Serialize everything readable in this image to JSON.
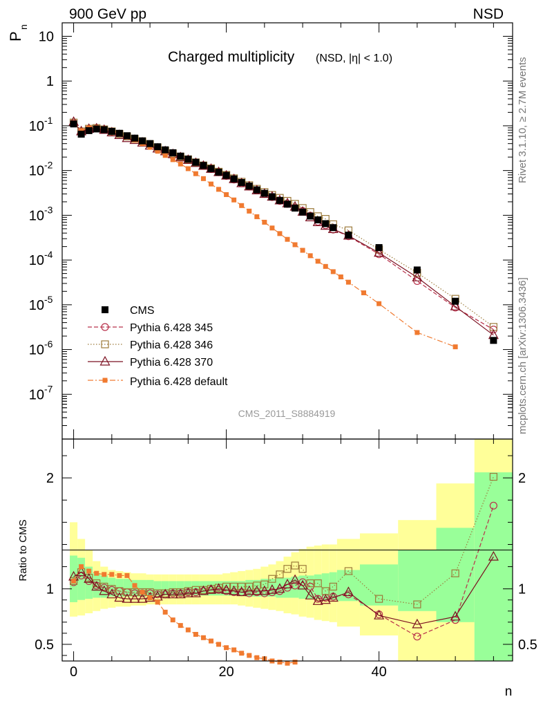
{
  "header": {
    "left": "900 GeV pp",
    "right": "NSD"
  },
  "side_labels": {
    "rivet": "Rivet 3.1.10, ≥ 2.7M events",
    "mcplots": "mcplots.cern.ch [arXiv:1306.3436]"
  },
  "axes": {
    "y_main": "P",
    "y_main_sub": "n",
    "y_ratio": "Ratio to CMS",
    "x": "n"
  },
  "title": {
    "main": "Charged multiplicity",
    "sub": "(NSD, |η| < 1.0)"
  },
  "analysis_tag": "CMS_2011_S8884919",
  "colors": {
    "cms": "#000000",
    "s345": "#b8304a",
    "s346": "#9c7a3a",
    "s370": "#7b1020",
    "default": "#f07a30",
    "band_inner": "#99ff99",
    "band_outer": "#ffff99"
  },
  "chart_data": [
    {
      "type": "scatter",
      "panel": "main",
      "ylog": true,
      "ylim": [
        1e-08,
        20
      ],
      "xlim": [
        -1.5,
        57.5
      ],
      "y_ticks": [
        "10",
        "1",
        "10^-1",
        "10^-2",
        "10^-3",
        "10^-4",
        "10^-5",
        "10^-6",
        "10^-7"
      ],
      "x": [
        0,
        1,
        2,
        3,
        4,
        5,
        6,
        7,
        8,
        9,
        10,
        11,
        12,
        13,
        14,
        15,
        16,
        17,
        18,
        19,
        20,
        21,
        22,
        23,
        24,
        25,
        26,
        27,
        28,
        29,
        30,
        31,
        32,
        33,
        34,
        36,
        40,
        45,
        50,
        55
      ],
      "series": [
        {
          "name": "CMS",
          "marker": "square-filled",
          "values": [
            0.11,
            0.065,
            0.078,
            0.085,
            0.082,
            0.075,
            0.068,
            0.06,
            0.053,
            0.046,
            0.04,
            0.034,
            0.029,
            0.025,
            0.021,
            0.018,
            0.0153,
            0.013,
            0.011,
            0.0092,
            0.0078,
            0.0065,
            0.0054,
            0.0045,
            0.0037,
            0.0031,
            0.0026,
            0.00215,
            0.00177,
            0.00145,
            0.00118,
            0.00096,
            0.00079,
            0.00065,
            0.00053,
            0.00036,
            0.00019,
            6e-05,
            1.2e-05,
            1.6e-06
          ]
        },
        {
          "name": "Pythia 6.428 345",
          "marker": "circle-open",
          "values": [
            0.116,
            0.074,
            0.085,
            0.088,
            0.083,
            0.074,
            0.066,
            0.058,
            0.051,
            0.044,
            0.038,
            0.032,
            0.0275,
            0.0238,
            0.0202,
            0.0175,
            0.015,
            0.0128,
            0.0108,
            0.0092,
            0.0076,
            0.0063,
            0.0052,
            0.0044,
            0.0036,
            0.003,
            0.00255,
            0.0021,
            0.0018,
            0.00149,
            0.00125,
            0.00098,
            0.00072,
            0.0006,
            0.00048,
            0.00034,
            0.000135,
            3.4e-05,
            8.7e-06,
            2.8e-06
          ]
        },
        {
          "name": "Pythia 6.428 346",
          "marker": "square-open",
          "values": [
            0.118,
            0.075,
            0.086,
            0.089,
            0.083,
            0.075,
            0.066,
            0.058,
            0.051,
            0.045,
            0.039,
            0.033,
            0.028,
            0.0242,
            0.0205,
            0.0178,
            0.0152,
            0.013,
            0.0112,
            0.0094,
            0.008,
            0.0067,
            0.0056,
            0.0047,
            0.0039,
            0.0033,
            0.00285,
            0.00245,
            0.0021,
            0.0018,
            0.00145,
            0.00118,
            0.00095,
            0.00083,
            0.00063,
            0.00046,
            0.000172,
            5.2e-05,
            1.36e-05,
            3.2e-06
          ]
        },
        {
          "name": "Pythia 6.428 370",
          "marker": "triangle-open",
          "values": [
            0.122,
            0.075,
            0.085,
            0.087,
            0.081,
            0.071,
            0.062,
            0.053,
            0.048,
            0.042,
            0.036,
            0.031,
            0.0268,
            0.0232,
            0.0197,
            0.0172,
            0.0147,
            0.0127,
            0.0109,
            0.0092,
            0.0077,
            0.0064,
            0.0052,
            0.0044,
            0.0036,
            0.003,
            0.0026,
            0.00215,
            0.00185,
            0.00155,
            0.0012,
            0.0009,
            0.0007,
            0.00058,
            0.00049,
            0.00035,
            0.000145,
            4.1e-05,
            9.2e-06,
            2.1e-06
          ]
        },
        {
          "name": "Pythia 6.428 default",
          "marker": "square-filled-small",
          "x": [
            0,
            1,
            2,
            3,
            4,
            5,
            6,
            7,
            8,
            9,
            10,
            11,
            12,
            13,
            14,
            15,
            16,
            17,
            18,
            19,
            20,
            21,
            22,
            23,
            24,
            25,
            26,
            27,
            28,
            29,
            30,
            31,
            32,
            33,
            34,
            35,
            36,
            38,
            40,
            45,
            50
          ],
          "values": [
            0.118,
            0.078,
            0.09,
            0.092,
            0.087,
            0.077,
            0.068,
            0.058,
            0.048,
            0.04,
            0.033,
            0.027,
            0.0218,
            0.0175,
            0.014,
            0.011,
            0.0085,
            0.0066,
            0.005,
            0.0038,
            0.0029,
            0.0022,
            0.00165,
            0.00124,
            0.00093,
            0.0007,
            0.00052,
            0.00039,
            0.00029,
            0.00022,
            0.000165,
            0.000125,
            9.4e-05,
            7.2e-05,
            5.5e-05,
            4.2e-05,
            3.2e-05,
            1.85e-05,
            1.06e-05,
            2.4e-06,
            1.15e-06
          ]
        }
      ],
      "legend": [
        "CMS",
        "Pythia 6.428 345",
        "Pythia 6.428 346",
        "Pythia 6.428 370",
        "Pythia 6.428 default"
      ]
    },
    {
      "type": "scatter",
      "panel": "ratio",
      "ylim": [
        0.35,
        2.35
      ],
      "xlim": [
        -1.5,
        57.5
      ],
      "y_ticks": [
        "0.5",
        "1",
        "2"
      ],
      "x_ticks": [
        "0",
        "20",
        "40"
      ],
      "band_bins": [
        [
          -0.5,
          0.5
        ],
        [
          0.5,
          1.5
        ],
        [
          1.5,
          2.5
        ],
        [
          2.5,
          3.5
        ],
        [
          3.5,
          4.5
        ],
        [
          4.5,
          5.5
        ],
        [
          5.5,
          6.5
        ],
        [
          6.5,
          7.5
        ],
        [
          7.5,
          8.5
        ],
        [
          8.5,
          9.5
        ],
        [
          9.5,
          10.5
        ],
        [
          10.5,
          11.5
        ],
        [
          11.5,
          12.5
        ],
        [
          12.5,
          13.5
        ],
        [
          13.5,
          14.5
        ],
        [
          14.5,
          15.5
        ],
        [
          15.5,
          16.5
        ],
        [
          16.5,
          17.5
        ],
        [
          17.5,
          18.5
        ],
        [
          18.5,
          19.5
        ],
        [
          19.5,
          20.5
        ],
        [
          20.5,
          21.5
        ],
        [
          21.5,
          22.5
        ],
        [
          22.5,
          23.5
        ],
        [
          23.5,
          24.5
        ],
        [
          24.5,
          25.5
        ],
        [
          25.5,
          26.5
        ],
        [
          26.5,
          27.5
        ],
        [
          27.5,
          28.5
        ],
        [
          28.5,
          29.5
        ],
        [
          29.5,
          30.5
        ],
        [
          30.5,
          31.5
        ],
        [
          31.5,
          32.5
        ],
        [
          32.5,
          33.5
        ],
        [
          33.5,
          34.5
        ],
        [
          34.5,
          37.5
        ],
        [
          37.5,
          42.5
        ],
        [
          42.5,
          47.5
        ],
        [
          47.5,
          52.5
        ],
        [
          52.5,
          57.5
        ]
      ],
      "band_inner": [
        [
          0.88,
          1.3
        ],
        [
          0.9,
          1.28
        ],
        [
          0.91,
          1.2
        ],
        [
          0.92,
          1.14
        ],
        [
          0.92,
          1.12
        ],
        [
          0.93,
          1.1
        ],
        [
          0.93,
          1.09
        ],
        [
          0.93,
          1.09
        ],
        [
          0.93,
          1.08
        ],
        [
          0.93,
          1.08
        ],
        [
          0.94,
          1.08
        ],
        [
          0.94,
          1.07
        ],
        [
          0.94,
          1.07
        ],
        [
          0.94,
          1.07
        ],
        [
          0.94,
          1.07
        ],
        [
          0.94,
          1.07
        ],
        [
          0.94,
          1.07
        ],
        [
          0.94,
          1.07
        ],
        [
          0.94,
          1.07
        ],
        [
          0.94,
          1.07
        ],
        [
          0.94,
          1.07
        ],
        [
          0.94,
          1.07
        ],
        [
          0.94,
          1.07
        ],
        [
          0.93,
          1.08
        ],
        [
          0.93,
          1.08
        ],
        [
          0.93,
          1.09
        ],
        [
          0.93,
          1.09
        ],
        [
          0.92,
          1.1
        ],
        [
          0.92,
          1.1
        ],
        [
          0.92,
          1.11
        ],
        [
          0.91,
          1.12
        ],
        [
          0.91,
          1.12
        ],
        [
          0.91,
          1.13
        ],
        [
          0.9,
          1.14
        ],
        [
          0.9,
          1.15
        ],
        [
          0.89,
          1.17
        ],
        [
          0.85,
          1.22
        ],
        [
          0.8,
          1.35
        ],
        [
          0.7,
          1.55
        ],
        [
          0.3,
          2.05
        ]
      ],
      "band_outer": [
        [
          0.75,
          1.6
        ],
        [
          0.76,
          1.45
        ],
        [
          0.78,
          1.35
        ],
        [
          0.8,
          1.25
        ],
        [
          0.82,
          1.2
        ],
        [
          0.83,
          1.17
        ],
        [
          0.84,
          1.16
        ],
        [
          0.84,
          1.15
        ],
        [
          0.85,
          1.14
        ],
        [
          0.85,
          1.14
        ],
        [
          0.86,
          1.13
        ],
        [
          0.86,
          1.13
        ],
        [
          0.86,
          1.13
        ],
        [
          0.86,
          1.13
        ],
        [
          0.86,
          1.13
        ],
        [
          0.86,
          1.13
        ],
        [
          0.86,
          1.13
        ],
        [
          0.86,
          1.13
        ],
        [
          0.86,
          1.13
        ],
        [
          0.86,
          1.13
        ],
        [
          0.86,
          1.14
        ],
        [
          0.86,
          1.15
        ],
        [
          0.85,
          1.16
        ],
        [
          0.84,
          1.17
        ],
        [
          0.83,
          1.18
        ],
        [
          0.82,
          1.2
        ],
        [
          0.81,
          1.22
        ],
        [
          0.8,
          1.25
        ],
        [
          0.78,
          1.29
        ],
        [
          0.77,
          1.33
        ],
        [
          0.75,
          1.36
        ],
        [
          0.74,
          1.38
        ],
        [
          0.72,
          1.39
        ],
        [
          0.71,
          1.4
        ],
        [
          0.7,
          1.4
        ],
        [
          0.66,
          1.45
        ],
        [
          0.58,
          1.5
        ],
        [
          0.3,
          1.62
        ],
        [
          0.3,
          1.95
        ],
        [
          0.3,
          2.4
        ]
      ],
      "series": [
        {
          "name": "Pythia 6.428 345",
          "values": [
            1.06,
            1.12,
            1.07,
            1.03,
            1.01,
            0.99,
            0.98,
            0.97,
            0.96,
            0.96,
            0.96,
            0.95,
            0.95,
            0.96,
            0.96,
            0.97,
            0.97,
            0.98,
            0.99,
            0.99,
            0.98,
            0.97,
            0.97,
            0.96,
            0.97,
            0.96,
            0.97,
            0.98,
            1.01,
            1.03,
            1.06,
            1.02,
            0.91,
            0.92,
            0.93,
            0.95,
            0.77,
            0.57,
            0.72,
            1.75
          ]
        },
        {
          "name": "Pythia 6.428 346",
          "values": [
            1.07,
            1.15,
            1.1,
            1.05,
            1.02,
            1.0,
            0.98,
            0.97,
            0.97,
            0.97,
            0.97,
            0.96,
            0.96,
            0.97,
            0.97,
            0.98,
            0.99,
            0.99,
            1.0,
            1.01,
            1.02,
            1.02,
            1.02,
            1.02,
            1.03,
            1.04,
            1.09,
            1.13,
            1.18,
            1.21,
            1.18,
            1.05,
            1.05,
            0.98,
            1.02,
            1.16,
            0.91,
            0.86,
            1.14,
            2.01
          ]
        },
        {
          "name": "Pythia 6.428 370",
          "values": [
            1.11,
            1.15,
            1.09,
            1.02,
            0.98,
            0.95,
            0.92,
            0.91,
            0.91,
            0.91,
            0.92,
            0.93,
            0.95,
            0.95,
            0.95,
            0.96,
            0.96,
            0.98,
            0.99,
            1.0,
            0.99,
            0.98,
            0.97,
            0.98,
            0.98,
            0.98,
            0.99,
            1.0,
            1.04,
            1.08,
            1.03,
            0.94,
            0.89,
            0.9,
            0.92,
            0.97,
            0.76,
            0.68,
            0.75,
            1.29
          ]
        },
        {
          "name": "Pythia 6.428 default",
          "x": [
            0,
            1,
            2,
            3,
            4,
            5,
            6,
            7,
            8,
            9,
            10,
            11,
            12,
            13,
            14,
            15,
            16,
            17,
            18,
            19,
            20,
            21,
            22,
            23,
            24,
            25,
            26,
            27,
            28,
            29
          ],
          "values": [
            1.07,
            1.2,
            1.16,
            1.14,
            1.13,
            1.13,
            1.12,
            1.12,
            1.03,
            0.97,
            0.92,
            0.88,
            0.79,
            0.72,
            0.67,
            0.63,
            0.59,
            0.56,
            0.53,
            0.5,
            0.47,
            0.45,
            0.42,
            0.4,
            0.38,
            0.37,
            0.35,
            0.34,
            0.33,
            0.34
          ]
        }
      ]
    }
  ]
}
